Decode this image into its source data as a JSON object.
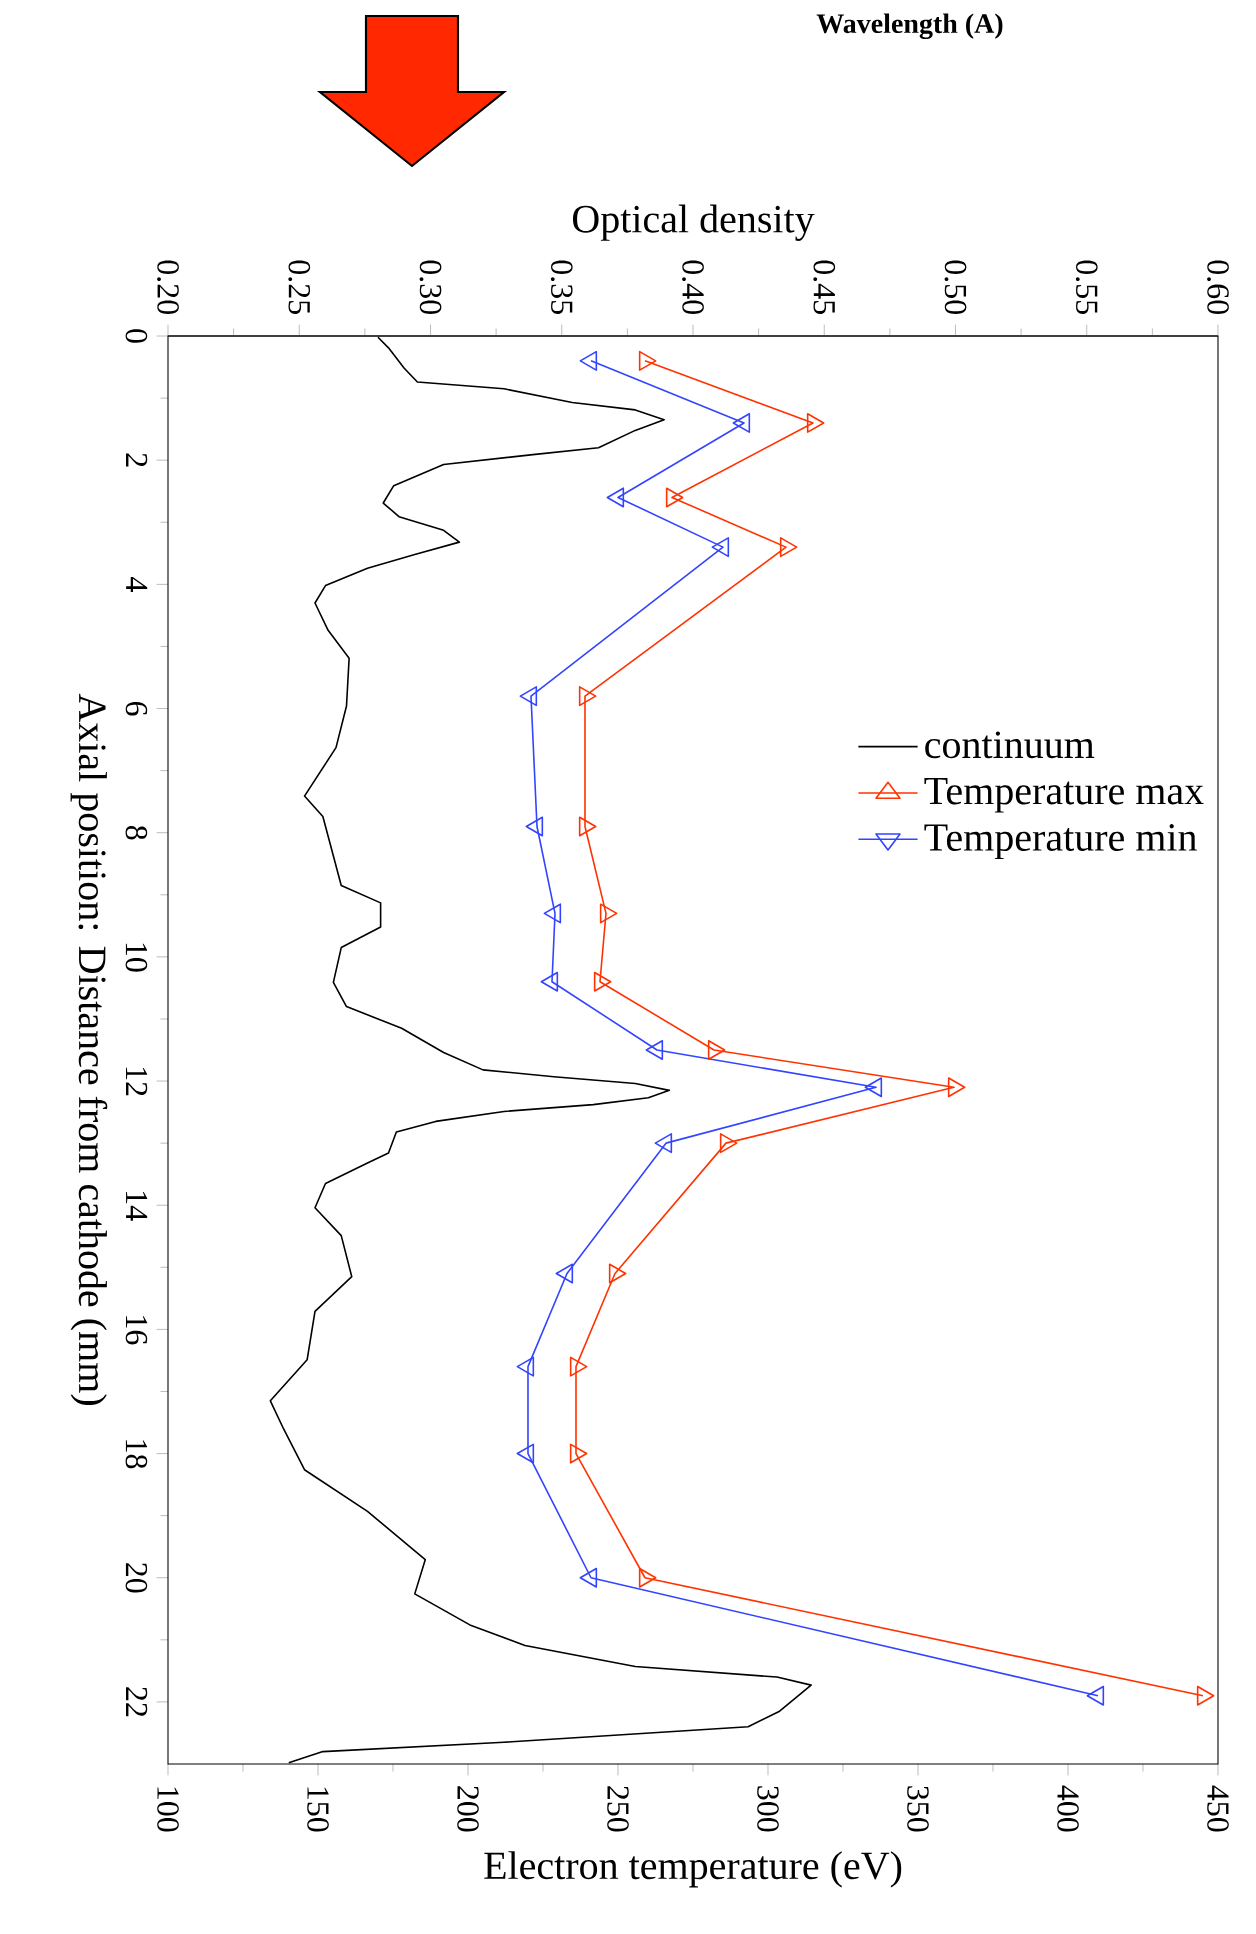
{
  "chart_data": {
    "type": "line",
    "xlabel": "Electron temperature (eV)",
    "x2label": "Optical density",
    "ylabel": "Axial position: Distance from cathode (mm)",
    "xlim": [
      100,
      450
    ],
    "xticks": [
      100,
      150,
      200,
      250,
      300,
      350,
      400,
      450
    ],
    "x2lim": [
      0.2,
      0.6
    ],
    "x2ticks": [
      {
        "value": 0.2,
        "label": "0.20"
      },
      {
        "value": 0.25,
        "label": "0.25"
      },
      {
        "value": 0.3,
        "label": "0.30"
      },
      {
        "value": 0.35,
        "label": "0.35"
      },
      {
        "value": 0.4,
        "label": "0.40"
      },
      {
        "value": 0.45,
        "label": "0.45"
      },
      {
        "value": 0.5,
        "label": "0.50"
      },
      {
        "value": 0.55,
        "label": "0.55"
      },
      {
        "value": 0.6,
        "label": "0.60"
      }
    ],
    "ylim": [
      23,
      0
    ],
    "yticks": [
      0,
      2,
      4,
      6,
      8,
      10,
      12,
      14,
      16,
      18,
      20,
      22
    ],
    "legend": "right",
    "annotations": [
      "Wavelength (A)"
    ],
    "series": [
      {
        "name": "continuum",
        "color": "#000000",
        "axis": "x2",
        "marker": "none",
        "x": [
          0.28,
          0.284,
          0.29,
          0.295,
          0.328,
          0.354,
          0.378,
          0.389,
          0.378,
          0.364,
          0.339,
          0.305,
          0.286,
          0.282,
          0.288,
          0.305,
          0.311,
          0.294,
          0.276,
          0.26,
          0.256,
          0.261,
          0.269,
          0.268,
          0.264,
          0.252,
          0.259,
          0.266,
          0.281,
          0.281,
          0.266,
          0.263,
          0.268,
          0.289,
          0.305,
          0.32,
          0.347,
          0.378,
          0.391,
          0.383,
          0.362,
          0.328,
          0.302,
          0.287,
          0.284,
          0.276,
          0.26,
          0.256,
          0.266,
          0.27,
          0.256,
          0.253,
          0.239,
          0.244,
          0.252,
          0.276,
          0.298,
          0.294,
          0.315,
          0.336,
          0.378,
          0.432,
          0.445,
          0.433,
          0.421,
          0.328,
          0.259,
          0.246
        ],
        "values": [
          0.02,
          0.19,
          0.52,
          0.74,
          0.85,
          1.07,
          1.19,
          1.35,
          1.52,
          1.8,
          1.91,
          2.07,
          2.41,
          2.69,
          2.91,
          3.13,
          3.32,
          3.52,
          3.74,
          4.02,
          4.3,
          4.74,
          5.19,
          5.96,
          6.63,
          7.41,
          7.74,
          8.85,
          9.13,
          9.52,
          9.85,
          10.41,
          10.8,
          11.15,
          11.54,
          11.82,
          11.93,
          12.04,
          12.15,
          12.27,
          12.38,
          12.49,
          12.65,
          12.82,
          13.16,
          13.32,
          13.65,
          14.04,
          14.49,
          15.15,
          15.71,
          16.49,
          17.15,
          17.6,
          18.26,
          18.93,
          19.71,
          20.26,
          20.76,
          21.09,
          21.43,
          21.6,
          21.73,
          22.15,
          22.4,
          22.65,
          22.8,
          22.98
        ]
      },
      {
        "name": "Temperature max",
        "color": "#ff3300",
        "marker": "triangle",
        "x": [
          259,
          315,
          268,
          306,
          239,
          239,
          246,
          244,
          282,
          362,
          286,
          249,
          236,
          236,
          259,
          445
        ],
        "values": [
          0.4,
          1.4,
          2.6,
          3.4,
          5.8,
          7.9,
          9.3,
          10.4,
          11.5,
          12.1,
          13.0,
          15.1,
          16.6,
          18.0,
          20.0,
          21.9
        ]
      },
      {
        "name": "Temperature min",
        "color": "#3344ff",
        "marker": "triangle down",
        "x": [
          241,
          292,
          250,
          285,
          221,
          223,
          229,
          228,
          263,
          336,
          266,
          233,
          220,
          220,
          241,
          410
        ],
        "values": [
          0.4,
          1.4,
          2.6,
          3.4,
          5.8,
          7.9,
          9.3,
          10.4,
          11.5,
          12.1,
          13.0,
          15.1,
          16.6,
          18.0,
          20.0,
          21.9
        ]
      }
    ]
  }
}
